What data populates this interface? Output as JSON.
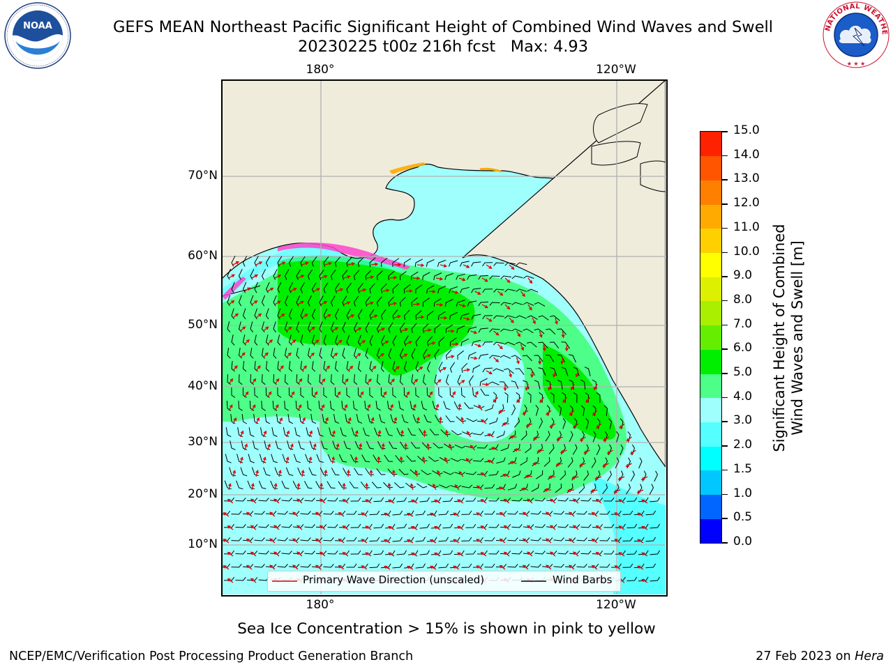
{
  "header": {
    "title_line1": "GEFS MEAN Northeast Pacific Significant Height of Combined Wind Waves and Swell",
    "title_line2": "20230225 t00z 216h fcst   Max: 4.93"
  },
  "logos": {
    "noaa_text": "NOAA",
    "nws_text": "NATIONAL WEATHER SERVICE"
  },
  "map": {
    "lon_labels_top": [
      "180°",
      "120°W"
    ],
    "lon_labels_bottom": [
      "180°",
      "120°W"
    ],
    "lat_labels": [
      "70°N",
      "60°N",
      "50°N",
      "40°N",
      "30°N",
      "20°N",
      "10°N"
    ],
    "colors": {
      "land": "#efecdc",
      "sea_ice": "#ff44cc",
      "wave_arrows": "#e00000",
      "wind_barbs": "#000000"
    }
  },
  "colorbar": {
    "title_line1": "Significant Height of Combined",
    "title_line2": "Wind Waves and Swell [m]",
    "ticks": [
      "0.0",
      "0.5",
      "1.0",
      "1.5",
      "2.0",
      "3.0",
      "4.0",
      "5.0",
      "6.0",
      "7.0",
      "8.0",
      "9.0",
      "10.0",
      "11.0",
      "12.0",
      "13.0",
      "14.0",
      "15.0"
    ],
    "colors": [
      "#0000ff",
      "#0066ff",
      "#00c8ff",
      "#00ffff",
      "#55ffff",
      "#9ffffd",
      "#4dff88",
      "#00ee00",
      "#66ee00",
      "#aaee00",
      "#ddf000",
      "#ffff00",
      "#ffd000",
      "#ffaa00",
      "#ff8000",
      "#ff5500",
      "#ff2200"
    ]
  },
  "legend": {
    "wave_label": "Primary Wave Direction (unscaled)",
    "wind_label": "Wind Barbs"
  },
  "footer": {
    "note": "Sea Ice Concentration > 15% is shown in pink to yellow",
    "credit": "NCEP/EMC/Verification Post Processing Product Generation Branch",
    "date": "27 Feb 2023 on ",
    "machine": "Hera"
  }
}
